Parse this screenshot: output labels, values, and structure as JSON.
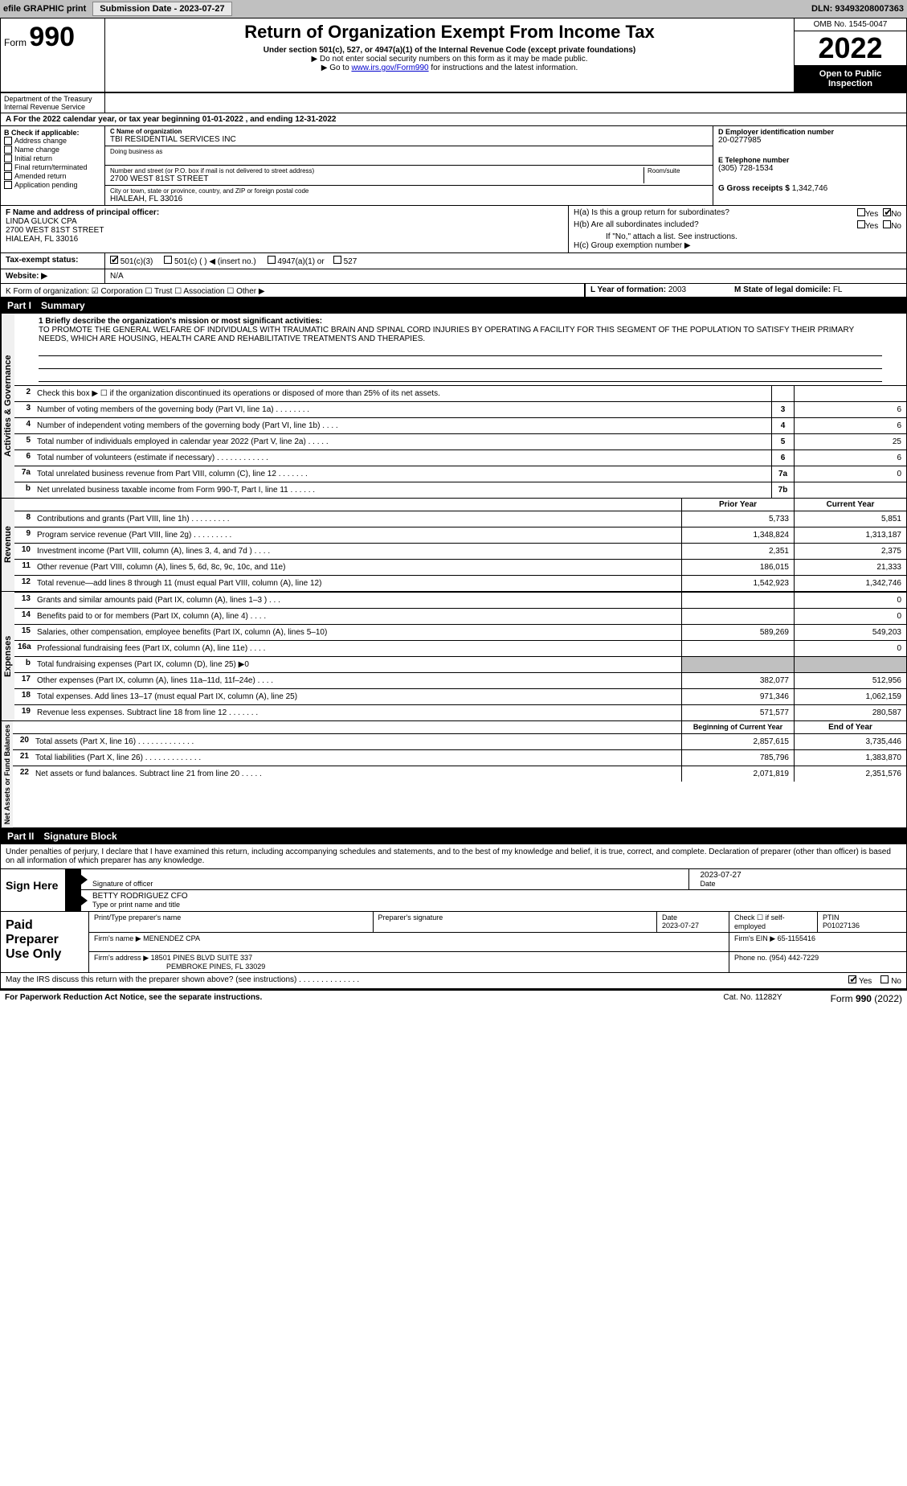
{
  "topbar": {
    "efile_label": "efile GRAPHIC print",
    "submission_label": "Submission Date - 2023-07-27",
    "dln": "DLN: 93493208007363"
  },
  "header": {
    "form_label": "Form",
    "form_num": "990",
    "title": "Return of Organization Exempt From Income Tax",
    "sub1": "Under section 501(c), 527, or 4947(a)(1) of the Internal Revenue Code (except private foundations)",
    "sub2": "▶ Do not enter social security numbers on this form as it may be made public.",
    "sub3_pre": "▶ Go to ",
    "sub3_link": "www.irs.gov/Form990",
    "sub3_post": " for instructions and the latest information.",
    "dept": "Department of the Treasury\nInternal Revenue Service",
    "omb": "OMB No. 1545-0047",
    "year": "2022",
    "open": "Open to Public Inspection"
  },
  "rowA": "A For the 2022 calendar year, or tax year beginning 01-01-2022    , and ending 12-31-2022",
  "colB": {
    "hdr": "B Check if applicable:",
    "items": [
      "Address change",
      "Name change",
      "Initial return",
      "Final return/terminated",
      "Amended return",
      "Application pending"
    ]
  },
  "colC": {
    "name_lbl": "C Name of organization",
    "name": "TBI RESIDENTIAL SERVICES INC",
    "dba_lbl": "Doing business as",
    "dba": "",
    "addr_lbl": "Number and street (or P.O. box if mail is not delivered to street address)",
    "room_lbl": "Room/suite",
    "addr": "2700 WEST 81ST STREET",
    "city_lbl": "City or town, state or province, country, and ZIP or foreign postal code",
    "city": "HIALEAH, FL  33016"
  },
  "colD": {
    "ein_lbl": "D Employer identification number",
    "ein": "20-0277985",
    "tel_lbl": "E Telephone number",
    "tel": "(305) 728-1534",
    "gross_lbl": "G Gross receipts $",
    "gross": "1,342,746"
  },
  "rowF": {
    "lbl": "F  Name and address of principal officer:",
    "name": "LINDA GLUCK CPA",
    "addr1": "2700 WEST 81ST STREET",
    "addr2": "HIALEAH, FL  33016"
  },
  "rowH": {
    "ha": "H(a)  Is this a group return for subordinates?",
    "hb": "H(b)  Are all subordinates included?",
    "hb_note": "If \"No,\" attach a list. See instructions.",
    "hc": "H(c)  Group exemption number ▶",
    "yes": "Yes",
    "no": "No"
  },
  "rowI": {
    "lbl": "Tax-exempt status:",
    "opts": [
      "501(c)(3)",
      "501(c) (  ) ◀ (insert no.)",
      "4947(a)(1) or",
      "527"
    ]
  },
  "rowJ": {
    "lbl": "Website: ▶",
    "val": "N/A"
  },
  "rowK": "K Form of organization:   ☑ Corporation  ☐ Trust  ☐ Association  ☐ Other ▶",
  "rowL": {
    "lbl": "L Year of formation:",
    "val": "2003"
  },
  "rowM": {
    "lbl": "M State of legal domicile:",
    "val": "FL"
  },
  "part1": {
    "hdr_num": "Part I",
    "hdr_title": "Summary",
    "vert1": "Activities & Governance",
    "vert2": "Revenue",
    "vert3": "Expenses",
    "vert4": "Net Assets or Fund Balances",
    "line1_lbl": "1  Briefly describe the organization's mission or most significant activities:",
    "mission": "TO PROMOTE THE GENERAL WELFARE OF INDIVIDUALS WITH TRAUMATIC BRAIN AND SPINAL CORD INJURIES BY OPERATING A FACILITY FOR THIS SEGMENT OF THE POPULATION TO SATISFY THEIR PRIMARY NEEDS, WHICH ARE HOUSING, HEALTH CARE AND REHABILITATIVE TREATMENTS AND THERAPIES.",
    "lines_ag": [
      {
        "n": "2",
        "t": "Check this box ▶ ☐  if the organization discontinued its operations or disposed of more than 25% of its net assets.",
        "b": "",
        "v": ""
      },
      {
        "n": "3",
        "t": "Number of voting members of the governing body (Part VI, line 1a)   .    .    .    .    .    .    .    .",
        "b": "3",
        "v": "6"
      },
      {
        "n": "4",
        "t": "Number of independent voting members of the governing body (Part VI, line 1b)   .    .    .    .",
        "b": "4",
        "v": "6"
      },
      {
        "n": "5",
        "t": "Total number of individuals employed in calendar year 2022 (Part V, line 2a)   .    .    .    .    .",
        "b": "5",
        "v": "25"
      },
      {
        "n": "6",
        "t": "Total number of volunteers (estimate if necessary)   .    .    .    .    .    .    .    .    .    .    .    .",
        "b": "6",
        "v": "6"
      },
      {
        "n": "7a",
        "t": "Total unrelated business revenue from Part VIII, column (C), line 12   .    .    .    .    .    .    .",
        "b": "7a",
        "v": "0"
      },
      {
        "n": "b",
        "t": "Net unrelated business taxable income from Form 990-T, Part I, line 11   .    .    .    .    .    .",
        "b": "7b",
        "v": ""
      }
    ],
    "prior_hdr": "Prior Year",
    "curr_hdr": "Current Year",
    "lines_rev": [
      {
        "n": "8",
        "t": "Contributions and grants (Part VIII, line 1h)   .    .    .    .    .    .    .    .    .",
        "p": "5,733",
        "c": "5,851"
      },
      {
        "n": "9",
        "t": "Program service revenue (Part VIII, line 2g)   .    .    .    .    .    .    .    .    .",
        "p": "1,348,824",
        "c": "1,313,187"
      },
      {
        "n": "10",
        "t": "Investment income (Part VIII, column (A), lines 3, 4, and 7d )   .    .    .    .",
        "p": "2,351",
        "c": "2,375"
      },
      {
        "n": "11",
        "t": "Other revenue (Part VIII, column (A), lines 5, 6d, 8c, 9c, 10c, and 11e)",
        "p": "186,015",
        "c": "21,333"
      },
      {
        "n": "12",
        "t": "Total revenue—add lines 8 through 11 (must equal Part VIII, column (A), line 12)",
        "p": "1,542,923",
        "c": "1,342,746"
      }
    ],
    "lines_exp": [
      {
        "n": "13",
        "t": "Grants and similar amounts paid (Part IX, column (A), lines 1–3 )   .    .    .",
        "p": "",
        "c": "0"
      },
      {
        "n": "14",
        "t": "Benefits paid to or for members (Part IX, column (A), line 4)   .    .    .    .",
        "p": "",
        "c": "0"
      },
      {
        "n": "15",
        "t": "Salaries, other compensation, employee benefits (Part IX, column (A), lines 5–10)",
        "p": "589,269",
        "c": "549,203"
      },
      {
        "n": "16a",
        "t": "Professional fundraising fees (Part IX, column (A), line 11e)   .    .    .    .",
        "p": "",
        "c": "0"
      },
      {
        "n": "b",
        "t": "Total fundraising expenses (Part IX, column (D), line 25) ▶0",
        "p": "gray",
        "c": "gray"
      },
      {
        "n": "17",
        "t": "Other expenses (Part IX, column (A), lines 11a–11d, 11f–24e)   .    .    .    .",
        "p": "382,077",
        "c": "512,956"
      },
      {
        "n": "18",
        "t": "Total expenses. Add lines 13–17 (must equal Part IX, column (A), line 25)",
        "p": "971,346",
        "c": "1,062,159"
      },
      {
        "n": "19",
        "t": "Revenue less expenses. Subtract line 18 from line 12   .    .    .    .    .    .    .",
        "p": "571,577",
        "c": "280,587"
      }
    ],
    "beg_hdr": "Beginning of Current Year",
    "end_hdr": "End of Year",
    "lines_na": [
      {
        "n": "20",
        "t": "Total assets (Part X, line 16)   .    .    .    .    .    .    .    .    .    .    .    .    .",
        "p": "2,857,615",
        "c": "3,735,446"
      },
      {
        "n": "21",
        "t": "Total liabilities (Part X, line 26)   .    .    .    .    .    .    .    .    .    .    .    .    .",
        "p": "785,796",
        "c": "1,383,870"
      },
      {
        "n": "22",
        "t": "Net assets or fund balances. Subtract line 21 from line 20   .    .    .    .    .",
        "p": "2,071,819",
        "c": "2,351,576"
      }
    ]
  },
  "part2": {
    "hdr_num": "Part II",
    "hdr_title": "Signature Block",
    "intro": "Under penalties of perjury, I declare that I have examined this return, including accompanying schedules and statements, and to the best of my knowledge and belief, it is true, correct, and complete. Declaration of preparer (other than officer) is based on all information of which preparer has any knowledge.",
    "sign_here": "Sign Here",
    "sig_lbl": "Signature of officer",
    "sig_date": "2023-07-27",
    "date_lbl": "Date",
    "name_title": "BETTY RODRIGUEZ  CFO",
    "name_title_lbl": "Type or print name and title",
    "paid_lbl": "Paid Preparer Use Only",
    "print_name_lbl": "Print/Type preparer's name",
    "prep_sig_lbl": "Preparer's signature",
    "prep_date_lbl": "Date",
    "prep_date": "2023-07-27",
    "check_self": "Check ☐ if self-employed",
    "ptin_lbl": "PTIN",
    "ptin": "P01027136",
    "firm_lbl": "Firm's name    ▶",
    "firm": "MENENDEZ CPA",
    "firm_ein_lbl": "Firm's EIN ▶",
    "firm_ein": "65-1155416",
    "firm_addr_lbl": "Firm's address ▶",
    "firm_addr1": "18501 PINES BLVD SUITE 337",
    "firm_addr2": "PEMBROKE PINES, FL  33029",
    "phone_lbl": "Phone no.",
    "phone": "(954) 442-7229",
    "discuss": "May the IRS discuss this return with the preparer shown above? (see instructions)   .    .    .    .    .    .    .    .    .    .    .    .    .    .",
    "discuss_yes": "Yes",
    "discuss_no": "No"
  },
  "footer": {
    "left": "For Paperwork Reduction Act Notice, see the separate instructions.",
    "mid": "Cat. No. 11282Y",
    "right_pre": "Form ",
    "right_bold": "990",
    "right_post": " (2022)"
  },
  "colors": {
    "black": "#000000",
    "gray_bg": "#c0c0c0",
    "link": "#0000cc"
  }
}
